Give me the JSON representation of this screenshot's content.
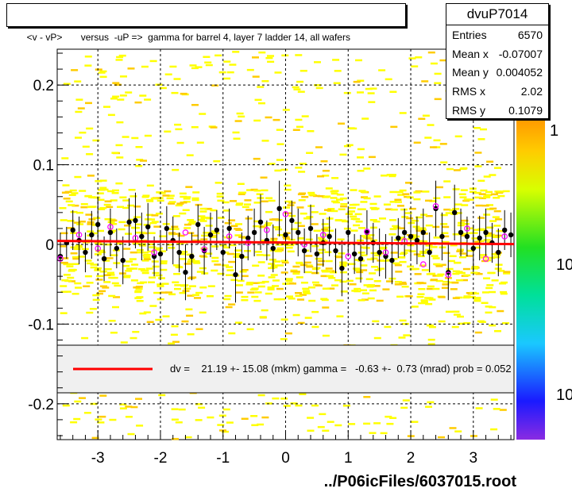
{
  "title": "<v - vP>       versus  -uP =>  gamma for barrel 4, layer 7 ladder 14, all wafers",
  "stats": {
    "name": "dvuP7014",
    "rows": [
      {
        "label": "Entries",
        "value": "6570"
      },
      {
        "label": "Mean x",
        "value": "-0.07007"
      },
      {
        "label": "Mean y",
        "value": "0.004052"
      },
      {
        "label": "RMS x",
        "value": "2.02"
      },
      {
        "label": "RMS y",
        "value": "0.1079"
      }
    ]
  },
  "fit_text": "dv =    21.19 +- 15.08 (mkm) gamma =   -0.63 +-  0.73 (mrad) prob = 0.052",
  "footer": "../P06icFiles/6037015.root",
  "colors": {
    "fit_line": "#ff0000",
    "scatter": "#ffff00",
    "points": "#000000",
    "open_points": "#ff00ff"
  },
  "chart_data": {
    "type": "scatter",
    "xlim": [
      -3.65,
      3.65
    ],
    "ylim": [
      -0.245,
      0.245
    ],
    "x_ticks": [
      -3,
      -2,
      -1,
      0,
      1,
      2,
      3
    ],
    "y_ticks": [
      -0.2,
      -0.1,
      0,
      0.1,
      0.2
    ],
    "x_tick_labels": [
      "-3",
      "-2",
      "-1",
      "0",
      "1",
      "2",
      "3"
    ],
    "y_tick_labels": [
      "-0.2",
      "-0.1",
      "0",
      "0.1",
      "0.2"
    ],
    "grid": true,
    "colorbar_labels": [
      "1",
      "10",
      "10"
    ],
    "profile": {
      "x": [
        -3.6,
        -3.5,
        -3.4,
        -3.3,
        -3.2,
        -3.1,
        -3.0,
        -2.9,
        -2.8,
        -2.7,
        -2.6,
        -2.5,
        -2.4,
        -2.3,
        -2.2,
        -2.1,
        -2.0,
        -1.9,
        -1.8,
        -1.7,
        -1.6,
        -1.5,
        -1.4,
        -1.3,
        -1.2,
        -1.1,
        -1.0,
        -0.9,
        -0.8,
        -0.7,
        -0.6,
        -0.5,
        -0.4,
        -0.3,
        -0.2,
        -0.1,
        0.0,
        0.1,
        0.2,
        0.3,
        0.4,
        0.5,
        0.6,
        0.7,
        0.8,
        0.9,
        1.0,
        1.1,
        1.2,
        1.3,
        1.4,
        1.5,
        1.6,
        1.7,
        1.8,
        1.9,
        2.0,
        2.1,
        2.2,
        2.3,
        2.4,
        2.5,
        2.6,
        2.7,
        2.8,
        2.9,
        3.0,
        3.1,
        3.2,
        3.3,
        3.4,
        3.5,
        3.6
      ],
      "y": [
        -0.015,
        0.002,
        0.018,
        0.005,
        -0.01,
        0.012,
        0.025,
        -0.018,
        0.015,
        -0.005,
        -0.02,
        0.028,
        0.03,
        0.01,
        0.022,
        -0.015,
        -0.012,
        0.02,
        0.005,
        -0.01,
        -0.035,
        -0.015,
        0.025,
        -0.008,
        0.012,
        0.018,
        -0.01,
        0.02,
        -0.038,
        -0.015,
        0.008,
        0.015,
        0.028,
        0.005,
        -0.005,
        0.045,
        0.012,
        0.03,
        0.015,
        -0.008,
        0.02,
        -0.012,
        0.002,
        0.01,
        -0.008,
        -0.03,
        0.015,
        -0.012,
        -0.018,
        0.015,
        0.002,
        -0.01,
        -0.015,
        -0.02,
        0.008,
        0.015,
        0.01,
        0.005,
        0.015,
        -0.01,
        0.045,
        0.01,
        -0.035,
        0.04,
        0.015,
        0.01,
        -0.005,
        0.008,
        0.015,
        0.002,
        -0.01,
        0.018,
        0.012
      ],
      "err": [
        0.03,
        0.02,
        0.025,
        0.03,
        0.025,
        0.03,
        0.035,
        0.028,
        0.03,
        0.025,
        0.03,
        0.03,
        0.035,
        0.03,
        0.03,
        0.025,
        0.03,
        0.028,
        0.03,
        0.025,
        0.035,
        0.03,
        0.025,
        0.03,
        0.028,
        0.025,
        0.03,
        0.025,
        0.035,
        0.03,
        0.028,
        0.03,
        0.035,
        0.025,
        0.03,
        0.035,
        0.03,
        0.025,
        0.03,
        0.028,
        0.03,
        0.025,
        0.03,
        0.025,
        0.028,
        0.035,
        0.03,
        0.025,
        0.03,
        0.028,
        0.025,
        0.03,
        0.028,
        0.03,
        0.025,
        0.03,
        0.028,
        0.03,
        0.03,
        0.025,
        0.035,
        0.03,
        0.035,
        0.035,
        0.03,
        0.025,
        0.03,
        0.028,
        0.03,
        0.025,
        0.03,
        0.025,
        0.028
      ]
    },
    "open_points": {
      "x": [
        -3.6,
        -3.3,
        -3.0,
        -2.8,
        -2.4,
        -2.1,
        -1.6,
        -1.3,
        -0.9,
        -0.6,
        -0.3,
        0.0,
        0.3,
        0.6,
        1.0,
        1.3,
        1.6,
        1.9,
        2.2,
        2.4,
        2.6,
        2.9,
        3.2,
        3.5
      ],
      "y": [
        -0.018,
        0.012,
        -0.005,
        0.022,
        0.008,
        -0.01,
        0.015,
        -0.006,
        0.01,
        0.002,
        0.018,
        0.038,
        0.0,
        0.012,
        -0.015,
        0.016,
        -0.01,
        0.004,
        -0.025,
        0.048,
        -0.038,
        0.02,
        -0.018,
        0.01
      ]
    },
    "fit": {
      "x": [
        -3.65,
        3.65
      ],
      "y": [
        0.0044,
        0.0004
      ]
    }
  }
}
